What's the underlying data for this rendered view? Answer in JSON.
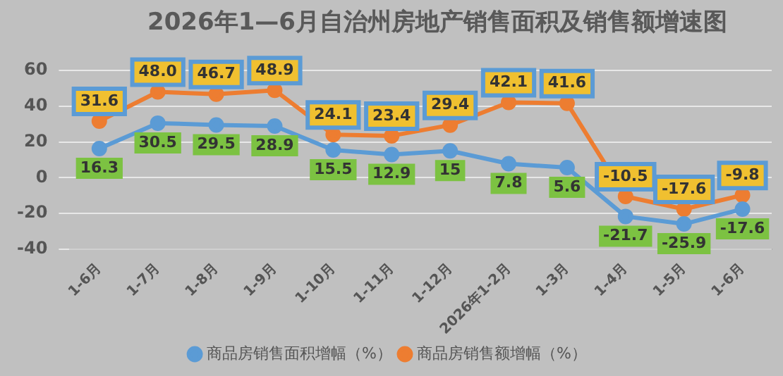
{
  "chart_data": {
    "type": "line",
    "title": "2026年1—6月自治州房地产销售面积及销售额增速图",
    "categories": [
      "1-6月",
      "1-7月",
      "1-8月",
      "1-9月",
      "1-10月",
      "1-11月",
      "1-12月",
      "2026年1-2月",
      "1-3月",
      "1-4月",
      "1-5月",
      "1-6月"
    ],
    "series": [
      {
        "name": "商品房销售面积增幅（%）",
        "color": "#5b9bd5",
        "values": [
          16.3,
          30.5,
          29.5,
          28.9,
          15.5,
          12.9,
          15,
          7.8,
          5.6,
          -21.7,
          -25.9,
          -17.6
        ],
        "value_labels": [
          "16.3",
          "30.5",
          "29.5",
          "28.9",
          "15.5",
          "12.9",
          "15",
          "7.8",
          "5.6",
          "-21.7",
          "-25.9",
          "-17.6"
        ]
      },
      {
        "name": "商品房销售额增幅（%）",
        "color": "#ed7d31",
        "values": [
          31.6,
          48.0,
          46.7,
          48.9,
          24.1,
          23.4,
          29.4,
          42.1,
          41.6,
          -10.5,
          -17.6,
          -9.8
        ],
        "value_labels": [
          "31.6",
          "48.0",
          "46.7",
          "48.9",
          "24.1",
          "23.4",
          "29.4",
          "42.1",
          "41.6",
          "-10.5",
          "-17.6",
          "-9.8"
        ]
      }
    ],
    "ylim": [
      -40,
      60
    ],
    "yticks": [
      -40,
      -20,
      0,
      20,
      40,
      60
    ],
    "grid": "y",
    "legend": "bottom",
    "marker": "circle",
    "line_style": "solid"
  }
}
